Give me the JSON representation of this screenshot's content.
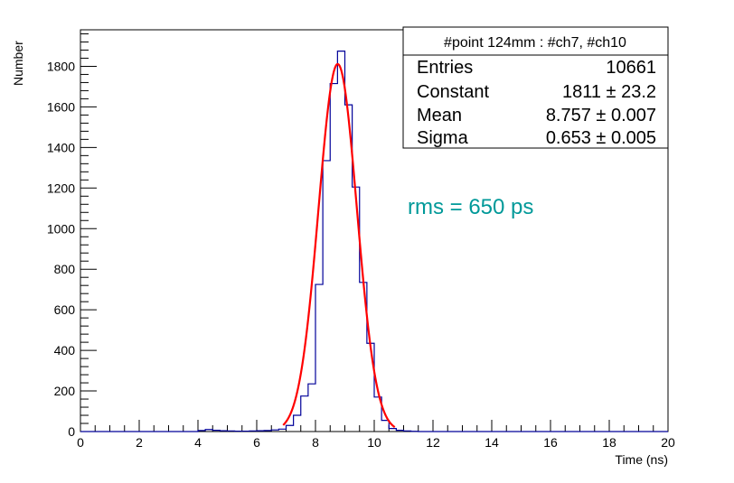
{
  "chart_data": {
    "type": "histogram",
    "xlabel": "Time (ns)",
    "ylabel": "Number",
    "xlim": [
      0,
      20
    ],
    "ylim": [
      0,
      1980
    ],
    "x_ticks": [
      0,
      2,
      4,
      6,
      8,
      10,
      12,
      14,
      16,
      18,
      20
    ],
    "y_ticks": [
      0,
      200,
      400,
      600,
      800,
      1000,
      1200,
      1400,
      1600,
      1800
    ],
    "bin_width": 0.25,
    "histogram": {
      "color": "#000099",
      "bin_edges_start": 4.0,
      "counts": [
        5,
        10,
        6,
        4,
        3,
        2,
        2,
        3,
        4,
        5,
        8,
        12,
        30,
        80,
        175,
        235,
        725,
        1335,
        1715,
        1875,
        1610,
        1205,
        735,
        435,
        170,
        55,
        15,
        6,
        3,
        1
      ]
    },
    "fit": {
      "color": "#ff0000",
      "function": "gaus",
      "constant": 1811,
      "mean": 8.757,
      "sigma": 0.653,
      "x_range": [
        6.9,
        10.7
      ]
    },
    "stats_box": {
      "title": "#point 124mm : #ch7, #ch10",
      "rows": [
        {
          "label": "Entries",
          "value": "10661"
        },
        {
          "label": "Constant",
          "value": "1811 ± 23.2"
        },
        {
          "label": "Mean",
          "value": "8.757 ± 0.007"
        },
        {
          "label": "Sigma",
          "value": "0.653 ± 0.005"
        }
      ]
    },
    "annotation": {
      "text": "rms = 650 ps",
      "color": "#009999"
    }
  }
}
